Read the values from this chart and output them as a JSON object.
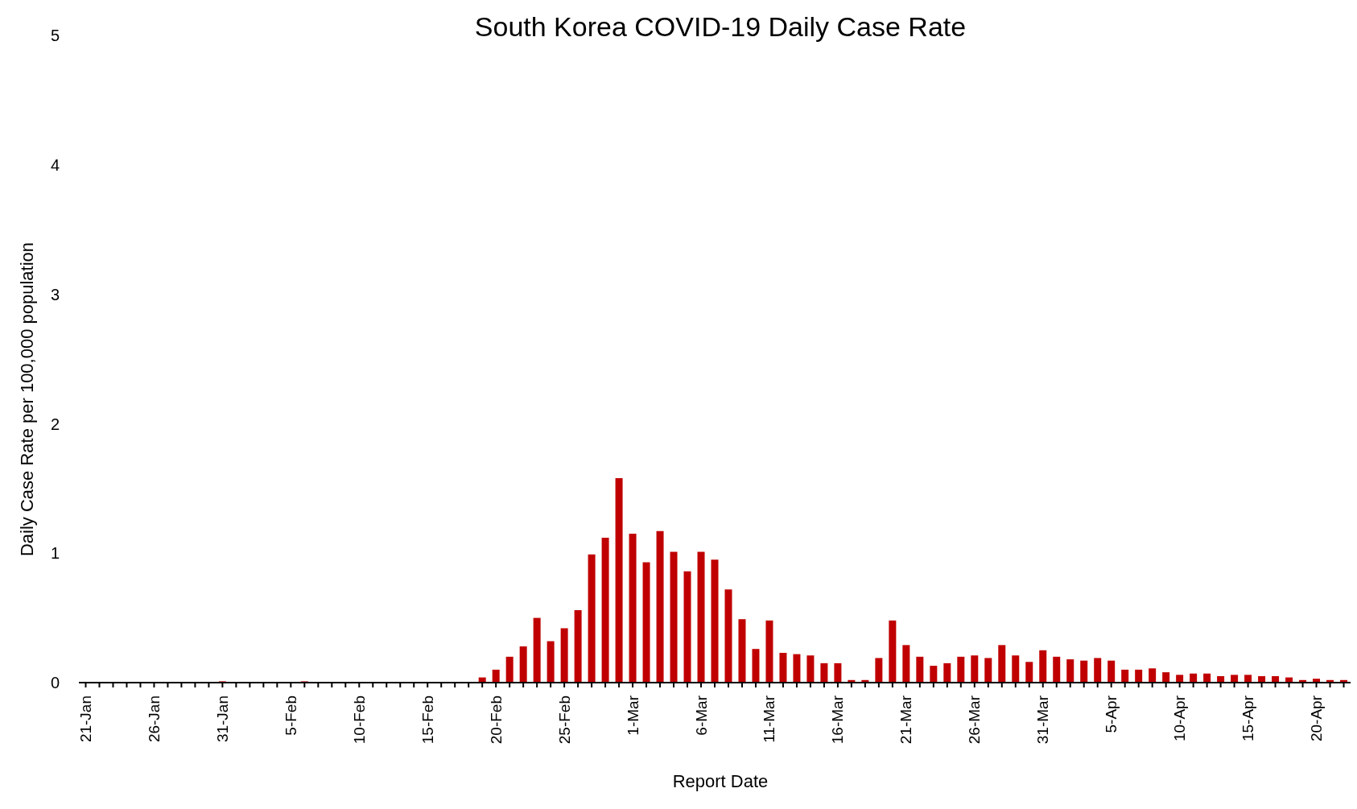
{
  "chart_data": {
    "type": "bar",
    "title": "South Korea COVID-19 Daily Case Rate",
    "xlabel": "Report Date",
    "ylabel": "Daily Case Rate per 100,000 population",
    "categories": [
      "21-Jan",
      null,
      null,
      null,
      null,
      "26-Jan",
      null,
      null,
      null,
      null,
      "31-Jan",
      null,
      null,
      null,
      null,
      "5-Feb",
      null,
      null,
      null,
      null,
      "10-Feb",
      null,
      null,
      null,
      null,
      "15-Feb",
      null,
      null,
      null,
      null,
      "20-Feb",
      null,
      null,
      null,
      null,
      "25-Feb",
      null,
      null,
      null,
      null,
      "1-Mar",
      null,
      null,
      null,
      null,
      "6-Mar",
      null,
      null,
      null,
      null,
      "11-Mar",
      null,
      null,
      null,
      null,
      "16-Mar",
      null,
      null,
      null,
      null,
      "21-Mar",
      null,
      null,
      null,
      null,
      "26-Mar",
      null,
      null,
      null,
      null,
      "31-Mar",
      null,
      null,
      null,
      null,
      "5-Apr",
      null,
      null,
      null,
      null,
      "10-Apr",
      null,
      null,
      null,
      null,
      "15-Apr",
      null,
      null,
      null,
      null,
      "20-Apr",
      null,
      null
    ],
    "values": [
      0,
      0,
      0,
      0,
      0,
      0,
      0,
      0,
      0,
      0,
      0.01,
      0,
      0,
      0,
      0,
      0,
      0.01,
      0,
      0,
      0,
      0,
      0,
      0,
      0,
      0,
      0,
      0,
      0,
      0,
      0.04,
      0.1,
      0.2,
      0.28,
      0.5,
      0.32,
      0.42,
      0.56,
      0.99,
      1.12,
      1.58,
      1.15,
      0.93,
      1.17,
      1.01,
      0.86,
      1.01,
      0.95,
      0.72,
      0.49,
      0.26,
      0.48,
      0.23,
      0.22,
      0.21,
      0.15,
      0.15,
      0.02,
      0.02,
      0.19,
      0.48,
      0.29,
      0.2,
      0.13,
      0.15,
      0.2,
      0.21,
      0.19,
      0.29,
      0.21,
      0.16,
      0.25,
      0.2,
      0.18,
      0.17,
      0.19,
      0.17,
      0.1,
      0.1,
      0.11,
      0.08,
      0.06,
      0.07,
      0.07,
      0.05,
      0.06,
      0.06,
      0.05,
      0.05,
      0.04,
      0.02,
      0.03,
      0.02,
      0.02
    ],
    "color": "#c00000",
    "ylim": [
      0,
      5
    ],
    "yticks": [
      0,
      1,
      2,
      3,
      4,
      5
    ],
    "grid": false,
    "legend": false
  }
}
